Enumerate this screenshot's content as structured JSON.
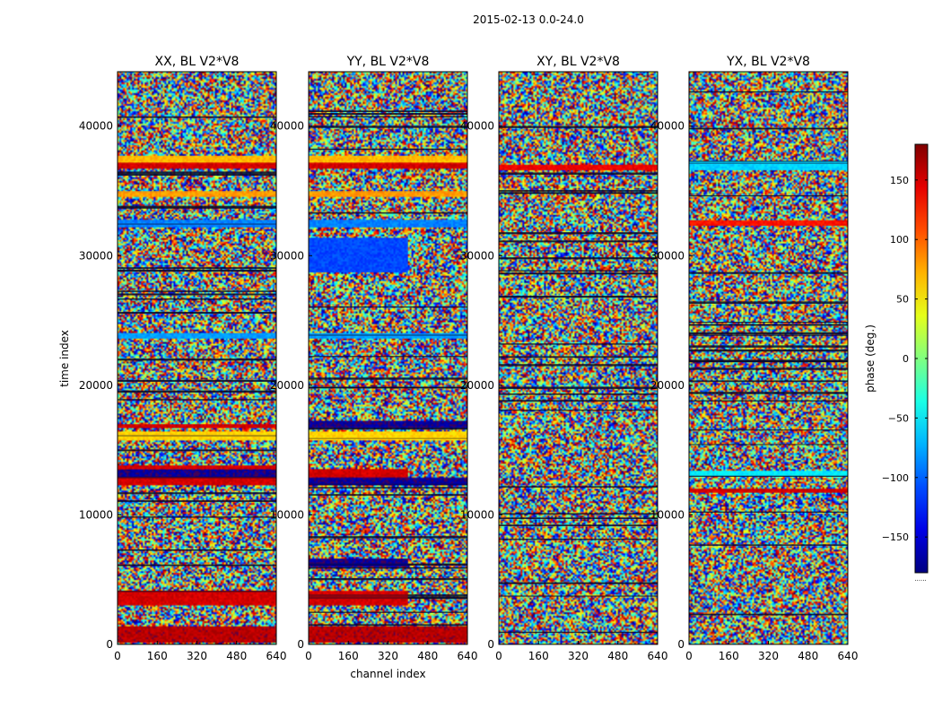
{
  "figure": {
    "suptitle": "2015-02-13 0.0-24.0",
    "colorbar_extend_marker": "......"
  },
  "chart_data": [
    {
      "type": "heatmap",
      "title": "XX, BL V2*V8",
      "xlabel": "",
      "ylabel": "time index",
      "xlim": [
        0,
        640
      ],
      "ylim": [
        0,
        44200
      ],
      "xticks": [
        "0",
        "160",
        "320",
        "480",
        "640"
      ],
      "yticks": [
        "0",
        "10000",
        "20000",
        "30000",
        "40000"
      ],
      "value": "phase (deg.)",
      "bands": [
        {
          "t0": 200,
          "t1": 1400,
          "phase": 160,
          "c1": 0,
          "c2": 640
        },
        {
          "t0": 3000,
          "t1": 4100,
          "phase": 150,
          "c1": 0,
          "c2": 640
        },
        {
          "t0": 12300,
          "t1": 12900,
          "phase": 150,
          "c1": 0,
          "c2": 640
        },
        {
          "t0": 12900,
          "t1": 13500,
          "phase": -170,
          "c1": 0,
          "c2": 640
        },
        {
          "t0": 13500,
          "t1": 13800,
          "phase": 150,
          "c1": 0,
          "c2": 640
        },
        {
          "t0": 15800,
          "t1": 16400,
          "phase": 60,
          "c1": 0,
          "c2": 640
        },
        {
          "t0": 16700,
          "t1": 17000,
          "phase": 150,
          "c1": 0,
          "c2": 640
        },
        {
          "t0": 23600,
          "t1": 24000,
          "phase": -80,
          "c1": 0,
          "c2": 640
        },
        {
          "t0": 32200,
          "t1": 32800,
          "phase": -90,
          "c1": 0,
          "c2": 640
        },
        {
          "t0": 34600,
          "t1": 35000,
          "phase": 80,
          "c1": 0,
          "c2": 640
        },
        {
          "t0": 36700,
          "t1": 37200,
          "phase": 150,
          "c1": 0,
          "c2": 640
        },
        {
          "t0": 37200,
          "t1": 37700,
          "phase": 70,
          "c1": 0,
          "c2": 640
        }
      ]
    },
    {
      "type": "heatmap",
      "title": "YY, BL V2*V8",
      "xlabel": "channel index",
      "ylabel": "",
      "xlim": [
        0,
        640
      ],
      "ylim": [
        0,
        44200
      ],
      "xticks": [
        "0",
        "160",
        "320",
        "480",
        "640"
      ],
      "yticks": [
        "0",
        "10000",
        "20000",
        "30000",
        "40000"
      ],
      "value": "phase (deg.)",
      "bands": [
        {
          "t0": 200,
          "t1": 1400,
          "phase": 160,
          "c1": 0,
          "c2": 640
        },
        {
          "t0": 3000,
          "t1": 4100,
          "phase": 150,
          "c1": 0,
          "c2": 400
        },
        {
          "t0": 6000,
          "t1": 6600,
          "phase": -170,
          "c1": 0,
          "c2": 400
        },
        {
          "t0": 12300,
          "t1": 12900,
          "phase": -170,
          "c1": 0,
          "c2": 640
        },
        {
          "t0": 12900,
          "t1": 13500,
          "phase": 150,
          "c1": 0,
          "c2": 400
        },
        {
          "t0": 15800,
          "t1": 16400,
          "phase": 60,
          "c1": 0,
          "c2": 640
        },
        {
          "t0": 16700,
          "t1": 17200,
          "phase": -170,
          "c1": 0,
          "c2": 640
        },
        {
          "t0": 23600,
          "t1": 24000,
          "phase": -80,
          "c1": 0,
          "c2": 640
        },
        {
          "t0": 28700,
          "t1": 31400,
          "phase": -110,
          "c1": 0,
          "c2": 400
        },
        {
          "t0": 32200,
          "t1": 32800,
          "phase": -90,
          "c1": 0,
          "c2": 640
        },
        {
          "t0": 34600,
          "t1": 35000,
          "phase": 80,
          "c1": 0,
          "c2": 640
        },
        {
          "t0": 36700,
          "t1": 37200,
          "phase": 150,
          "c1": 0,
          "c2": 640
        },
        {
          "t0": 37200,
          "t1": 37700,
          "phase": 70,
          "c1": 0,
          "c2": 640
        }
      ]
    },
    {
      "type": "heatmap",
      "title": "XY, BL V2*V8",
      "xlabel": "",
      "ylabel": "",
      "xlim": [
        0,
        640
      ],
      "ylim": [
        0,
        44200
      ],
      "xticks": [
        "0",
        "160",
        "320",
        "480",
        "640"
      ],
      "yticks": [
        "0",
        "10000",
        "20000",
        "30000",
        "40000"
      ],
      "value": "phase (deg.)",
      "bands": [
        {
          "t0": 36600,
          "t1": 37000,
          "phase": 140,
          "c1": 0,
          "c2": 640
        }
      ]
    },
    {
      "type": "heatmap",
      "title": "YX, BL V2*V8",
      "xlabel": "",
      "ylabel": "",
      "xlim": [
        0,
        640
      ],
      "ylim": [
        0,
        44200
      ],
      "xticks": [
        "0",
        "160",
        "320",
        "480",
        "640"
      ],
      "yticks": [
        "0",
        "10000",
        "20000",
        "30000",
        "40000"
      ],
      "value": "phase (deg.)",
      "bands": [
        {
          "t0": 11700,
          "t1": 12000,
          "phase": 150,
          "c1": 0,
          "c2": 640
        },
        {
          "t0": 13000,
          "t1": 13400,
          "phase": -50,
          "c1": 0,
          "c2": 640
        },
        {
          "t0": 32300,
          "t1": 32700,
          "phase": 130,
          "c1": 0,
          "c2": 640
        },
        {
          "t0": 36600,
          "t1": 37300,
          "phase": -60,
          "c1": 0,
          "c2": 640
        }
      ]
    },
    {
      "type": "colorbar",
      "label": "phase (deg.)",
      "range": [
        -180,
        180
      ],
      "colormap": "jet",
      "ticks": [
        "150",
        "100",
        "50",
        "0",
        "−50",
        "−100",
        "−150"
      ],
      "tick_values": [
        150,
        100,
        50,
        0,
        -50,
        -100,
        -150
      ]
    }
  ]
}
